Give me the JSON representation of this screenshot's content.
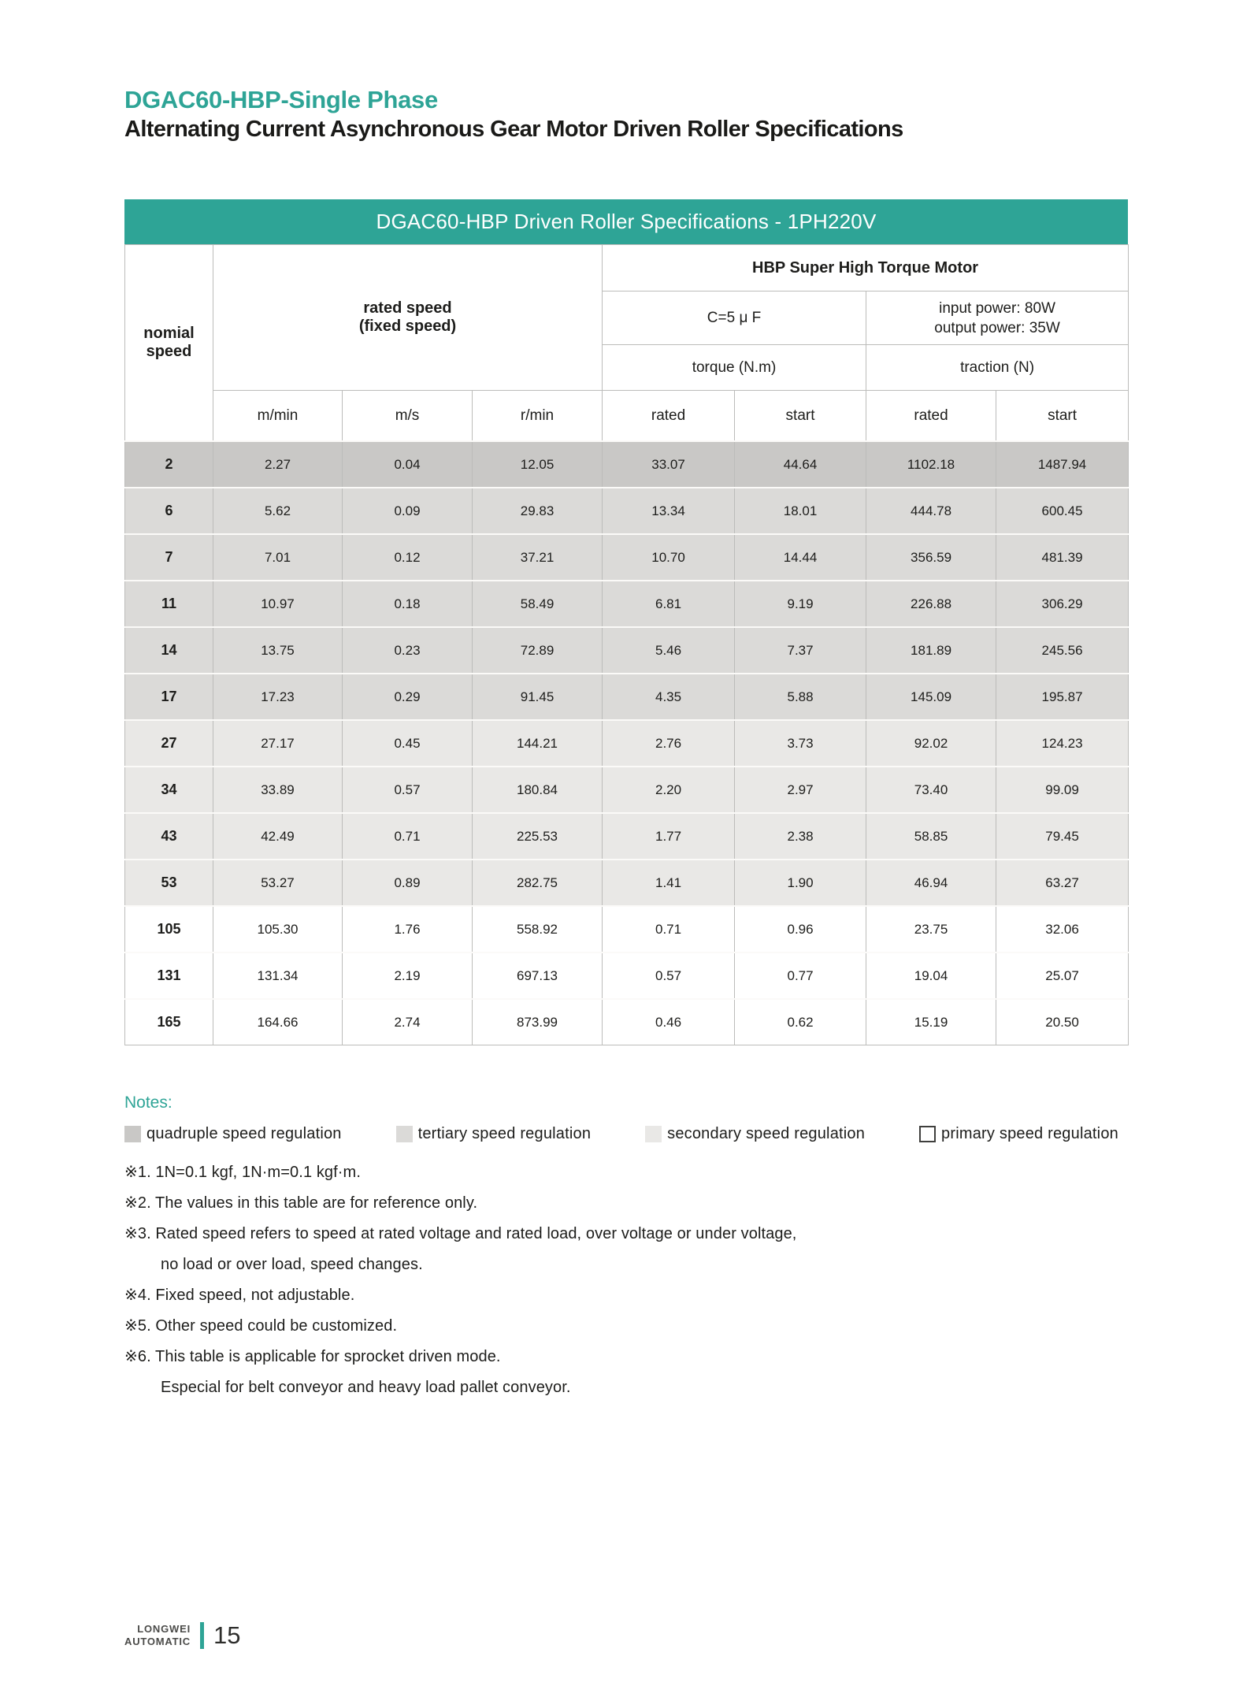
{
  "page": {
    "title": "DGAC60-HBP-Single Phase",
    "subtitle": "Alternating Current Asynchronous Gear Motor Driven Roller Specifications"
  },
  "theme": {
    "teal": "#2EA496",
    "border_gray": "#bcbcba"
  },
  "table": {
    "caption": "DGAC60-HBP Driven Roller Specifications - 1PH220V",
    "header": {
      "nominal_speed_line1": "nomial",
      "nominal_speed_line2": "speed",
      "rated_speed_line1": "rated speed",
      "rated_speed_line2": "(fixed speed)",
      "motor_group": "HBP Super High Torque Motor",
      "capacitor": "C=5 μ F",
      "power_line1": "input power: 80W",
      "power_line2": "output power: 35W",
      "torque_group": "torque (N.m)",
      "traction_group": "traction (N)",
      "unit_cols": [
        "m/min",
        "m/s",
        "r/min",
        "rated",
        "start",
        "rated",
        "start"
      ]
    },
    "regulation_colors": {
      "quadruple": "#c9c8c6",
      "tertiary": "#dbdad8",
      "secondary": "#e9e8e6",
      "primary": "#ffffff"
    },
    "rows": [
      {
        "nominal": "2",
        "regulation": "quadruple",
        "values": [
          "2.27",
          "0.04",
          "12.05",
          "33.07",
          "44.64",
          "1102.18",
          "1487.94"
        ]
      },
      {
        "nominal": "6",
        "regulation": "tertiary",
        "values": [
          "5.62",
          "0.09",
          "29.83",
          "13.34",
          "18.01",
          "444.78",
          "600.45"
        ]
      },
      {
        "nominal": "7",
        "regulation": "tertiary",
        "values": [
          "7.01",
          "0.12",
          "37.21",
          "10.70",
          "14.44",
          "356.59",
          "481.39"
        ]
      },
      {
        "nominal": "11",
        "regulation": "tertiary",
        "values": [
          "10.97",
          "0.18",
          "58.49",
          "6.81",
          "9.19",
          "226.88",
          "306.29"
        ]
      },
      {
        "nominal": "14",
        "regulation": "tertiary",
        "values": [
          "13.75",
          "0.23",
          "72.89",
          "5.46",
          "7.37",
          "181.89",
          "245.56"
        ]
      },
      {
        "nominal": "17",
        "regulation": "tertiary",
        "values": [
          "17.23",
          "0.29",
          "91.45",
          "4.35",
          "5.88",
          "145.09",
          "195.87"
        ]
      },
      {
        "nominal": "27",
        "regulation": "secondary",
        "values": [
          "27.17",
          "0.45",
          "144.21",
          "2.76",
          "3.73",
          "92.02",
          "124.23"
        ]
      },
      {
        "nominal": "34",
        "regulation": "secondary",
        "values": [
          "33.89",
          "0.57",
          "180.84",
          "2.20",
          "2.97",
          "73.40",
          "99.09"
        ]
      },
      {
        "nominal": "43",
        "regulation": "secondary",
        "values": [
          "42.49",
          "0.71",
          "225.53",
          "1.77",
          "2.38",
          "58.85",
          "79.45"
        ]
      },
      {
        "nominal": "53",
        "regulation": "secondary",
        "values": [
          "53.27",
          "0.89",
          "282.75",
          "1.41",
          "1.90",
          "46.94",
          "63.27"
        ]
      },
      {
        "nominal": "105",
        "regulation": "primary",
        "values": [
          "105.30",
          "1.76",
          "558.92",
          "0.71",
          "0.96",
          "23.75",
          "32.06"
        ]
      },
      {
        "nominal": "131",
        "regulation": "primary",
        "values": [
          "131.34",
          "2.19",
          "697.13",
          "0.57",
          "0.77",
          "19.04",
          "25.07"
        ]
      },
      {
        "nominal": "165",
        "regulation": "primary",
        "values": [
          "164.66",
          "2.74",
          "873.99",
          "0.46",
          "0.62",
          "15.19",
          "20.50"
        ]
      }
    ]
  },
  "notes": {
    "heading": "Notes:",
    "legend": [
      {
        "label": "quadruple speed regulation",
        "regulation": "quadruple"
      },
      {
        "label": "tertiary speed regulation",
        "regulation": "tertiary"
      },
      {
        "label": "secondary speed regulation",
        "regulation": "secondary"
      },
      {
        "label": "primary speed regulation",
        "regulation": "primary"
      }
    ],
    "items": [
      {
        "text": "※1. 1N=0.1 kgf, 1N·m=0.1 kgf·m.",
        "indent": false
      },
      {
        "text": "※2. The values in this table are for reference only.",
        "indent": false
      },
      {
        "text": "※3. Rated speed refers to speed at rated voltage and rated load, over voltage or under voltage,",
        "indent": false
      },
      {
        "text": "no load or over load, speed changes.",
        "indent": true
      },
      {
        "text": "※4. Fixed speed, not adjustable.",
        "indent": false
      },
      {
        "text": "※5. Other speed could be customized.",
        "indent": false
      },
      {
        "text": "※6. This table is applicable for sprocket driven mode.",
        "indent": false
      },
      {
        "text": "Especial for belt conveyor and heavy load pallet conveyor.",
        "indent": true
      }
    ]
  },
  "footer": {
    "brand_line1": "LONGWEI",
    "brand_line2": "AUTOMATIC",
    "page_number": "15"
  }
}
